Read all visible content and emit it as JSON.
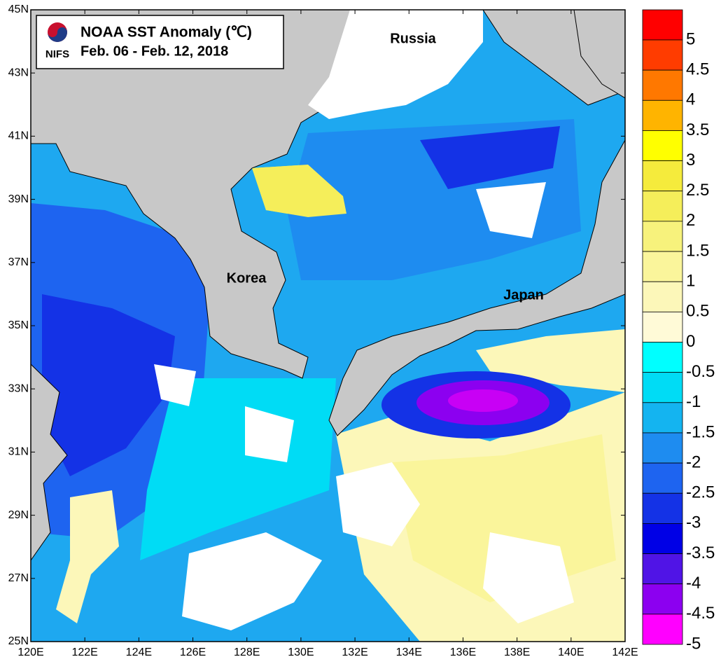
{
  "map": {
    "title": "NOAA SST Anomaly (℃)",
    "subtitle": "Feb. 06 - Feb. 12,  2018",
    "logo_text": "NIFS",
    "places": [
      "Russia",
      "Korea",
      "Japan"
    ],
    "lonlim": [
      120,
      142
    ],
    "latlim": [
      25,
      45
    ],
    "lon_ticks": [
      {
        "value": 120,
        "label": "120E"
      },
      {
        "value": 122,
        "label": "122E"
      },
      {
        "value": 124,
        "label": "124E"
      },
      {
        "value": 126,
        "label": "126E"
      },
      {
        "value": 128,
        "label": "128E"
      },
      {
        "value": 130,
        "label": "130E"
      },
      {
        "value": 132,
        "label": "132E"
      },
      {
        "value": 134,
        "label": "134E"
      },
      {
        "value": 136,
        "label": "136E"
      },
      {
        "value": 138,
        "label": "138E"
      },
      {
        "value": 140,
        "label": "140E"
      },
      {
        "value": 142,
        "label": "142E"
      }
    ],
    "lat_ticks": [
      {
        "value": 25,
        "label": "25N"
      },
      {
        "value": 27,
        "label": "27N"
      },
      {
        "value": 29,
        "label": "29N"
      },
      {
        "value": 31,
        "label": "31N"
      },
      {
        "value": 33,
        "label": "33N"
      },
      {
        "value": 35,
        "label": "35N"
      },
      {
        "value": 37,
        "label": "37N"
      },
      {
        "value": 39,
        "label": "39N"
      },
      {
        "value": 41,
        "label": "41N"
      },
      {
        "value": 43,
        "label": "43N"
      },
      {
        "value": 45,
        "label": "45N"
      }
    ]
  },
  "colorbar": {
    "levels": [
      5,
      4.5,
      4,
      3.5,
      3,
      2.5,
      2,
      1.5,
      1,
      0.5,
      0,
      -0.5,
      -1,
      -1.5,
      -2,
      -2.5,
      -3,
      -3.5,
      -4,
      -4.5,
      -5
    ],
    "colors": [
      "#ff0000",
      "#ff3c00",
      "#ff7800",
      "#ffb400",
      "#ffff00",
      "#f5eb3c",
      "#f5ee5a",
      "#f7f27c",
      "#faf59b",
      "#fcf7b9",
      "#fffad7",
      "#00ffff",
      "#00dcf5",
      "#14b4f0",
      "#1e8cf0",
      "#1e64f0",
      "#1432e6",
      "#0000e6",
      "#5014e6",
      "#8c00f0",
      "#ff00ff"
    ]
  }
}
